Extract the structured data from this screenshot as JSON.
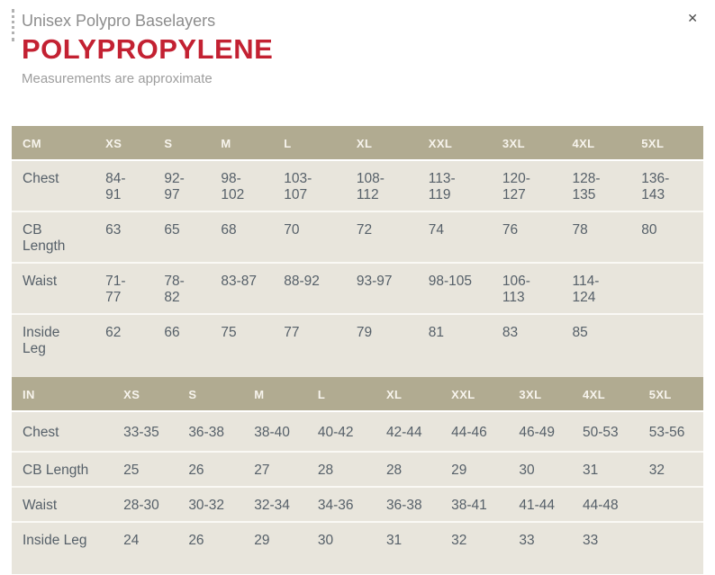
{
  "window": {
    "close_glyph": "✕"
  },
  "header": {
    "pretitle": "Unisex Polypro Baselayers",
    "title": "POLYPROPYLENE",
    "subtitle": "Measurements are approximate"
  },
  "colors": {
    "accent_red": "#c32132",
    "table_header_bg": "#b1ab91",
    "table_row_bg": "#e8e5dc",
    "body_text": "#566069",
    "header_text": "#f7f4ed"
  },
  "tables": [
    {
      "unit": "CM",
      "columns": [
        "XS",
        "S",
        "M",
        "L",
        "XL",
        "XXL",
        "3XL",
        "4XL",
        "5XL"
      ],
      "rows": [
        {
          "label": "Chest",
          "values": [
            "84-\n91",
            "92-\n97",
            "98-\n102",
            "103-\n107",
            "108-\n112",
            "113-\n119",
            "120-\n127",
            "128-\n135",
            "136-\n143"
          ]
        },
        {
          "label": "CB Length",
          "values": [
            "63",
            "65",
            "68",
            "70",
            "72",
            "74",
            "76",
            "78",
            "80"
          ]
        },
        {
          "label": "Waist",
          "values": [
            "71-\n77",
            "78-\n82",
            "83-87",
            "88-92",
            "93-97",
            "98-105",
            "106-\n113",
            "114-\n124",
            ""
          ]
        },
        {
          "label": "Inside Leg",
          "values": [
            "62",
            "66",
            "75",
            "77",
            "79",
            "81",
            "83",
            "85",
            ""
          ]
        }
      ]
    },
    {
      "unit": "IN",
      "columns": [
        "XS",
        "S",
        "M",
        "L",
        "XL",
        "XXL",
        "3XL",
        "4XL",
        "5XL"
      ],
      "rows": [
        {
          "label": "Chest",
          "values": [
            "33-35",
            "36-38",
            "38-40",
            "40-42",
            "42-44",
            "44-46",
            "46-49",
            "50-53",
            "53-56"
          ]
        },
        {
          "label": "CB Length",
          "values": [
            "25",
            "26",
            "27",
            "28",
            "28",
            "29",
            "30",
            "31",
            "32"
          ]
        },
        {
          "label": "Waist",
          "values": [
            "28-30",
            "30-32",
            "32-34",
            "34-36",
            "36-38",
            "38-41",
            "41-44",
            "44-48",
            ""
          ]
        },
        {
          "label": "Inside Leg",
          "values": [
            "24",
            "26",
            "29",
            "30",
            "31",
            "32",
            "33",
            "33",
            ""
          ]
        }
      ]
    }
  ]
}
